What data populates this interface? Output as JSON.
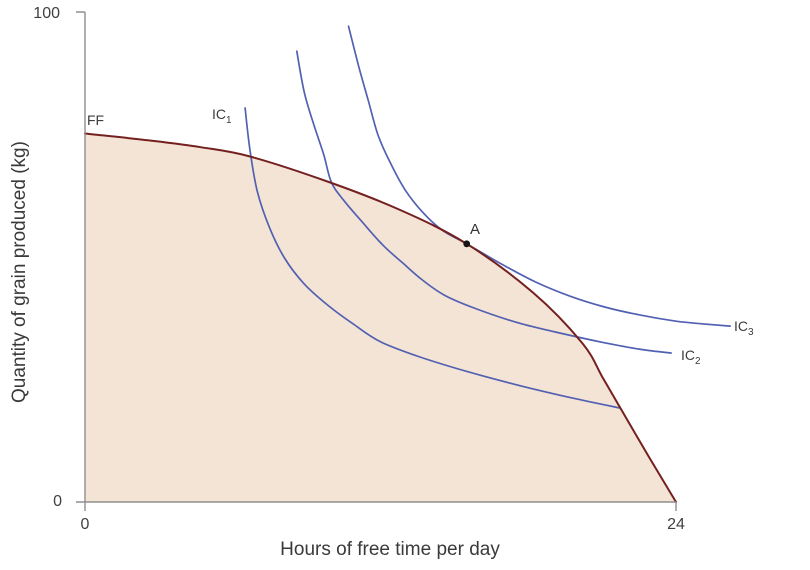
{
  "axes": {
    "x": {
      "title": "Hours of free time per day",
      "tick_labels": [
        "0",
        "24"
      ],
      "range": [
        0,
        24
      ]
    },
    "y": {
      "title": "Quantity of grain produced (kg)",
      "tick_labels": [
        "0",
        "100"
      ],
      "range": [
        0,
        100
      ]
    }
  },
  "curve_labels": {
    "ff": "FF",
    "point_a": "A",
    "ic1": {
      "base": "IC",
      "sub": "1"
    },
    "ic2": {
      "base": "IC",
      "sub": "2"
    },
    "ic3": {
      "base": "IC",
      "sub": "3"
    }
  },
  "colors": {
    "frontier": "#74201f",
    "feasible_fill": "#f4e4d5",
    "indifference": "#5260b2",
    "axis": "#8f8f8f",
    "text": "#3d3d3d",
    "point": "#161616",
    "background": "#ffffff"
  },
  "chart_data": {
    "type": "line",
    "title": "",
    "xlabel": "Hours of free time per day",
    "ylabel": "Quantity of grain produced (kg)",
    "xlim": [
      0,
      24
    ],
    "ylim": [
      0,
      100
    ],
    "x_ticks": [
      0,
      24
    ],
    "y_ticks": [
      0,
      100
    ],
    "grid": false,
    "legend": "inline-curve-labels",
    "description": "Feasible frontier FF (shaded feasible set) with three indifference curves; IC3 is tangent to FF at point A, IC1 and IC2 cross the frontier.",
    "series": [
      {
        "name": "FF",
        "role": "feasible-frontier",
        "color": "#74201f",
        "fill_under": "#f4e4d5",
        "points": [
          [
            0,
            75.2
          ],
          [
            2.6,
            73.8
          ],
          [
            4.7,
            72.4
          ],
          [
            6.7,
            70.5
          ],
          [
            9.9,
            65.3
          ],
          [
            12.8,
            59.6
          ],
          [
            15.5,
            52.7
          ],
          [
            18.2,
            42.7
          ],
          [
            20.2,
            32.4
          ],
          [
            21.0,
            25.6
          ],
          [
            21.7,
            19.5
          ],
          [
            22.9,
            9.2
          ],
          [
            24,
            0
          ]
        ]
      },
      {
        "name": "IC1",
        "role": "indifference-curve",
        "color": "#5260b2",
        "points": [
          [
            6.5,
            80.4
          ],
          [
            6.7,
            71.8
          ],
          [
            7.0,
            63.3
          ],
          [
            7.5,
            55.9
          ],
          [
            8.1,
            49.8
          ],
          [
            8.9,
            44.5
          ],
          [
            9.9,
            40.0
          ],
          [
            10.9,
            36.3
          ],
          [
            12.0,
            32.7
          ],
          [
            13.6,
            29.6
          ],
          [
            15.6,
            26.5
          ],
          [
            17.7,
            23.7
          ],
          [
            19.8,
            21.2
          ],
          [
            21.7,
            19.2
          ]
        ]
      },
      {
        "name": "IC2",
        "role": "indifference-curve",
        "color": "#5260b2",
        "points": [
          [
            8.6,
            92.0
          ],
          [
            8.9,
            83.7
          ],
          [
            9.3,
            76.9
          ],
          [
            9.7,
            70.8
          ],
          [
            10.0,
            65.3
          ],
          [
            10.5,
            61.6
          ],
          [
            11.3,
            56.9
          ],
          [
            12.1,
            52.4
          ],
          [
            12.9,
            48.8
          ],
          [
            13.7,
            45.3
          ],
          [
            14.6,
            42.2
          ],
          [
            15.8,
            39.6
          ],
          [
            17.5,
            36.7
          ],
          [
            19.1,
            34.7
          ],
          [
            20.9,
            32.7
          ],
          [
            22.5,
            31.2
          ],
          [
            23.8,
            30.4
          ]
        ]
      },
      {
        "name": "IC3",
        "role": "indifference-curve",
        "color": "#5260b2",
        "points": [
          [
            10.7,
            97.1
          ],
          [
            11.1,
            89.2
          ],
          [
            11.5,
            82.0
          ],
          [
            11.9,
            74.9
          ],
          [
            12.4,
            69.2
          ],
          [
            13.0,
            63.7
          ],
          [
            13.7,
            59.2
          ],
          [
            14.5,
            55.5
          ],
          [
            15.5,
            52.7
          ],
          [
            16.9,
            48.6
          ],
          [
            18.3,
            44.9
          ],
          [
            19.7,
            42.0
          ],
          [
            21.1,
            39.8
          ],
          [
            22.5,
            38.2
          ],
          [
            24.0,
            36.9
          ],
          [
            25.2,
            36.3
          ],
          [
            26.2,
            35.9
          ]
        ]
      }
    ],
    "point_A": {
      "x": 15.5,
      "y": 52.7,
      "label": "A",
      "meaning": "tangency of IC3 with feasible frontier"
    }
  }
}
